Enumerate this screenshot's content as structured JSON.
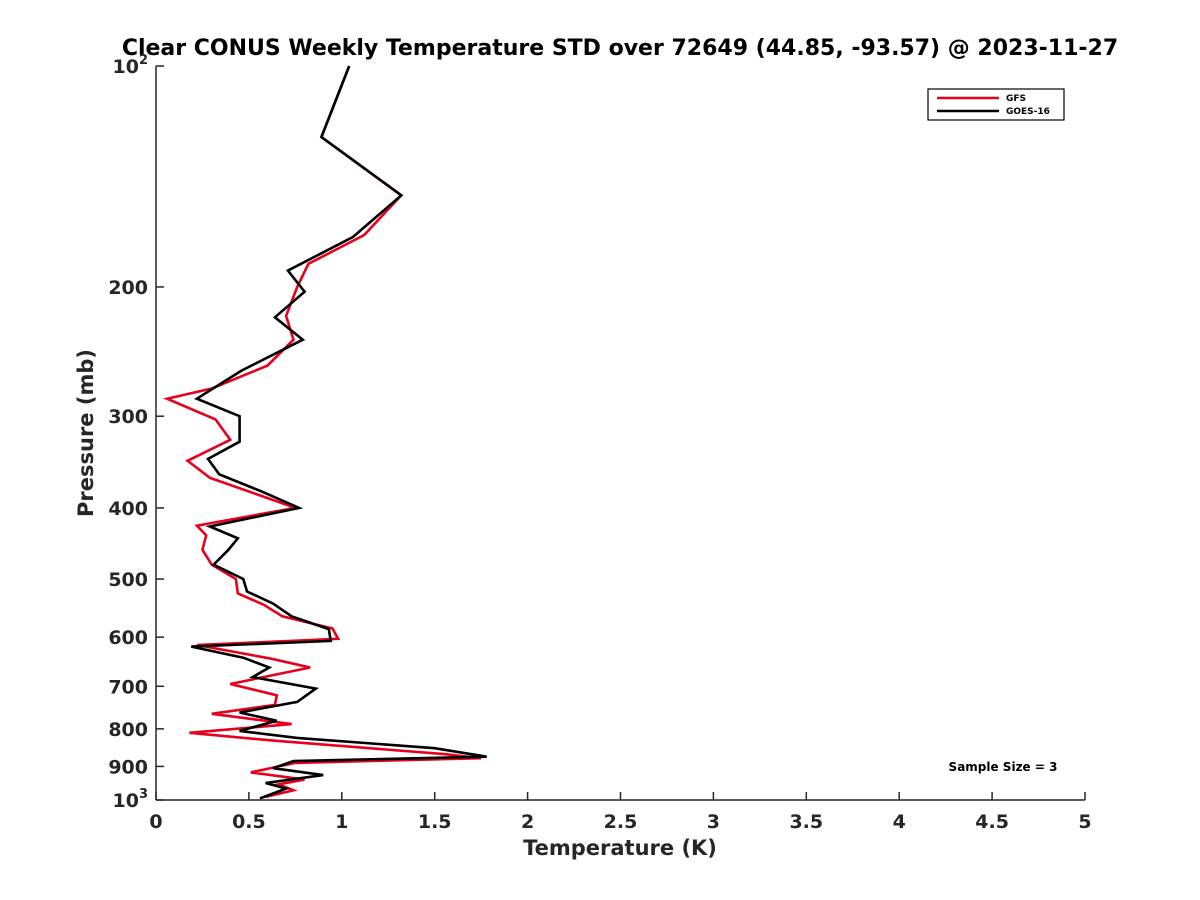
{
  "chart_data": {
    "type": "line",
    "title": "Clear CONUS Weekly Temperature STD over 72649 (44.85, -93.57) @ 2023-11-27",
    "xlabel": "Temperature (K)",
    "ylabel": "Pressure (mb)",
    "xlim": [
      0,
      5
    ],
    "ylim": [
      1000,
      100
    ],
    "yscale": "log",
    "y_reversed": true,
    "grid": false,
    "legend_position": "top-right",
    "x_ticks": [
      {
        "value": 0,
        "label": "0"
      },
      {
        "value": 0.5,
        "label": "0.5"
      },
      {
        "value": 1,
        "label": "1"
      },
      {
        "value": 1.5,
        "label": "1.5"
      },
      {
        "value": 2,
        "label": "2"
      },
      {
        "value": 2.5,
        "label": "2.5"
      },
      {
        "value": 3,
        "label": "3"
      },
      {
        "value": 3.5,
        "label": "3.5"
      },
      {
        "value": 4,
        "label": "4"
      },
      {
        "value": 4.5,
        "label": "4.5"
      },
      {
        "value": 5,
        "label": "5"
      }
    ],
    "y_ticks": [
      {
        "value": 100,
        "base": "10",
        "exp": "2"
      },
      {
        "value": 200,
        "base": "200",
        "exp": ""
      },
      {
        "value": 300,
        "base": "300",
        "exp": ""
      },
      {
        "value": 400,
        "base": "400",
        "exp": ""
      },
      {
        "value": 500,
        "base": "500",
        "exp": ""
      },
      {
        "value": 600,
        "base": "600",
        "exp": ""
      },
      {
        "value": 700,
        "base": "700",
        "exp": ""
      },
      {
        "value": 800,
        "base": "800",
        "exp": ""
      },
      {
        "value": 900,
        "base": "900",
        "exp": ""
      },
      {
        "value": 1000,
        "base": "10",
        "exp": "3"
      }
    ],
    "series": [
      {
        "name": "GFS",
        "color": "#e8001c",
        "points": [
          [
            1.04,
            100
          ],
          [
            0.89,
            125
          ],
          [
            1.32,
            150
          ],
          [
            1.12,
            170
          ],
          [
            0.82,
            186
          ],
          [
            0.76,
            200
          ],
          [
            0.7,
            219
          ],
          [
            0.74,
            236
          ],
          [
            0.6,
            256
          ],
          [
            0.3,
            275
          ],
          [
            0.06,
            284
          ],
          [
            0.32,
            303
          ],
          [
            0.4,
            323
          ],
          [
            0.17,
            345
          ],
          [
            0.29,
            364
          ],
          [
            0.54,
            383
          ],
          [
            0.75,
            400
          ],
          [
            0.22,
            423
          ],
          [
            0.27,
            436
          ],
          [
            0.25,
            456
          ],
          [
            0.3,
            478
          ],
          [
            0.43,
            500
          ],
          [
            0.44,
            523
          ],
          [
            0.58,
            542
          ],
          [
            0.68,
            562
          ],
          [
            0.95,
            584
          ],
          [
            0.98,
            603
          ],
          [
            0.22,
            615
          ],
          [
            0.62,
            642
          ],
          [
            0.83,
            660
          ],
          [
            0.4,
            695
          ],
          [
            0.65,
            720
          ],
          [
            0.64,
            742
          ],
          [
            0.3,
            763
          ],
          [
            0.73,
            788
          ],
          [
            0.18,
            810
          ],
          [
            0.63,
            830
          ],
          [
            1.55,
            866
          ],
          [
            1.75,
            877
          ],
          [
            0.75,
            890
          ],
          [
            0.51,
            917
          ],
          [
            0.8,
            938
          ],
          [
            0.66,
            952
          ],
          [
            0.74,
            970
          ],
          [
            0.59,
            990
          ]
        ]
      },
      {
        "name": "GOES-16",
        "color": "#000000",
        "points": [
          [
            1.04,
            100
          ],
          [
            0.89,
            125
          ],
          [
            1.32,
            150
          ],
          [
            1.06,
            171
          ],
          [
            0.71,
            190
          ],
          [
            0.8,
            203
          ],
          [
            0.64,
            220
          ],
          [
            0.79,
            236
          ],
          [
            0.46,
            260
          ],
          [
            0.22,
            284
          ],
          [
            0.45,
            300
          ],
          [
            0.45,
            325
          ],
          [
            0.28,
            343
          ],
          [
            0.34,
            360
          ],
          [
            0.57,
            380
          ],
          [
            0.77,
            400
          ],
          [
            0.29,
            424
          ],
          [
            0.44,
            440
          ],
          [
            0.39,
            456
          ],
          [
            0.31,
            478
          ],
          [
            0.47,
            500
          ],
          [
            0.49,
            520
          ],
          [
            0.63,
            540
          ],
          [
            0.73,
            562
          ],
          [
            0.93,
            585
          ],
          [
            0.94,
            607
          ],
          [
            0.19,
            618
          ],
          [
            0.47,
            640
          ],
          [
            0.61,
            660
          ],
          [
            0.52,
            680
          ],
          [
            0.86,
            705
          ],
          [
            0.76,
            735
          ],
          [
            0.45,
            760
          ],
          [
            0.65,
            780
          ],
          [
            0.45,
            805
          ],
          [
            0.76,
            823
          ],
          [
            1.5,
            850
          ],
          [
            1.78,
            873
          ],
          [
            0.74,
            885
          ],
          [
            0.63,
            905
          ],
          [
            0.9,
            925
          ],
          [
            0.59,
            948
          ],
          [
            0.7,
            965
          ],
          [
            0.56,
            995
          ]
        ]
      }
    ],
    "annotation": "Sample Size = 3"
  }
}
